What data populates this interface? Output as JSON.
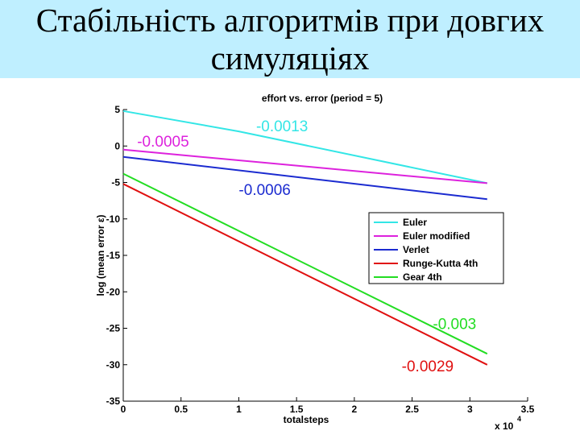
{
  "slide": {
    "title_line1": "Стабільність алгоритмів при довгих",
    "title_line2": "симуляціях"
  },
  "chart_data": {
    "type": "line",
    "title": "effort vs. error (period = 5)",
    "xlabel": "totalsteps",
    "ylabel": "log (mean error ε)",
    "x_scale_label": "x 10",
    "x_scale_exponent": "4",
    "xlim": [
      0,
      3.5
    ],
    "ylim": [
      -35,
      5
    ],
    "x_ticks": [
      0,
      0.5,
      1,
      1.5,
      2,
      2.5,
      3,
      3.5
    ],
    "x_tick_labels": [
      "0",
      "0.5",
      "1",
      "1.5",
      "2",
      "2.5",
      "3",
      "3.5"
    ],
    "y_ticks": [
      5,
      0,
      -5,
      -10,
      -15,
      -20,
      -25,
      -30,
      -35
    ],
    "y_tick_labels": [
      "5",
      "0",
      "-5",
      "-10",
      "-15",
      "-20",
      "-25",
      "-30",
      "-35"
    ],
    "grid": false,
    "legend_position": "right-middle",
    "series": [
      {
        "name": "Euler",
        "color": "#33e6e6",
        "x": [
          0,
          1.0,
          3.15
        ],
        "y": [
          4.8,
          2.0,
          -5.1
        ]
      },
      {
        "name": "Euler modified",
        "color": "#dd22dd",
        "x": [
          0,
          3.15
        ],
        "y": [
          -0.5,
          -5.1
        ]
      },
      {
        "name": "Verlet",
        "color": "#1b2bd0",
        "x": [
          0,
          3.15
        ],
        "y": [
          -1.5,
          -7.3
        ]
      },
      {
        "name": "Runge-Kutta 4th",
        "color": "#e01010",
        "x": [
          0,
          3.15
        ],
        "y": [
          -5.2,
          -30.0
        ]
      },
      {
        "name": "Gear 4th",
        "color": "#22dd22",
        "x": [
          0,
          3.15
        ],
        "y": [
          -3.8,
          -28.5
        ]
      }
    ],
    "annotations": [
      {
        "text": "-0.0005",
        "color": "#dd22dd",
        "x": 0.12,
        "y": -0.1
      },
      {
        "text": "-0.0013",
        "color": "#33e6e6",
        "x": 1.15,
        "y": 2.0
      },
      {
        "text": "-0.0006",
        "color": "#1b2bd0",
        "x": 1.0,
        "y": -6.7
      },
      {
        "text": "-0.003",
        "color": "#22dd22",
        "x": 2.68,
        "y": -25.1
      },
      {
        "text": "-0.0029",
        "color": "#e01010",
        "x": 2.41,
        "y": -30.9
      }
    ]
  }
}
